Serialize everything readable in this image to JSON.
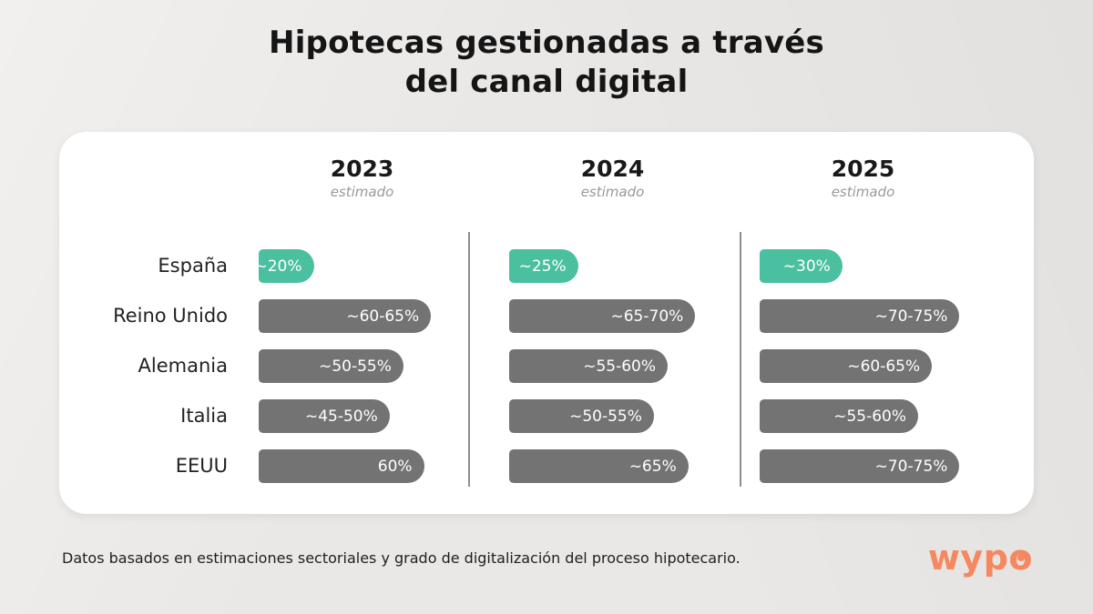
{
  "title": {
    "line1": "Hipotecas gestionadas a través",
    "line2": "del canal digital"
  },
  "colors": {
    "accent_teal": "#4ac0a0",
    "bar_gray": "#737373",
    "logo_orange": "#f6875f",
    "divider_gray": "#8f8f8f"
  },
  "footer": {
    "note": "Datos basados en estimaciones sectoriales y grado de digitalización del proceso hipotecario.",
    "logo": {
      "text": "wypo"
    }
  },
  "chart_data": {
    "type": "bar",
    "orientation": "horizontal",
    "title": "Hipotecas gestionadas a través del canal digital",
    "categories": [
      "España",
      "Reino Unido",
      "Alemania",
      "Italia",
      "EEUU"
    ],
    "unit": "%",
    "scale_max": 75,
    "highlight_category": "España",
    "columns": [
      {
        "year": "2023",
        "subtitle": "estimado",
        "bars": [
          {
            "label": "~20%",
            "value": 20,
            "highlight": true
          },
          {
            "label": "~60-65%",
            "value": 62.5,
            "highlight": false
          },
          {
            "label": "~50-55%",
            "value": 52.5,
            "highlight": false
          },
          {
            "label": "~45-50%",
            "value": 47.5,
            "highlight": false
          },
          {
            "label": "60%",
            "value": 60,
            "highlight": false
          }
        ]
      },
      {
        "year": "2024",
        "subtitle": "estimado",
        "bars": [
          {
            "label": "~25%",
            "value": 25,
            "highlight": true
          },
          {
            "label": "~65-70%",
            "value": 67.5,
            "highlight": false
          },
          {
            "label": "~55-60%",
            "value": 57.5,
            "highlight": false
          },
          {
            "label": "~50-55%",
            "value": 52.5,
            "highlight": false
          },
          {
            "label": "~65%",
            "value": 65,
            "highlight": false
          }
        ]
      },
      {
        "year": "2025",
        "subtitle": "estimado",
        "bars": [
          {
            "label": "~30%",
            "value": 30,
            "highlight": true
          },
          {
            "label": "~70-75%",
            "value": 72.5,
            "highlight": false
          },
          {
            "label": "~60-65%",
            "value": 62.5,
            "highlight": false
          },
          {
            "label": "~55-60%",
            "value": 57.5,
            "highlight": false
          },
          {
            "label": "~70-75%",
            "value": 72.5,
            "highlight": false
          }
        ]
      }
    ]
  }
}
